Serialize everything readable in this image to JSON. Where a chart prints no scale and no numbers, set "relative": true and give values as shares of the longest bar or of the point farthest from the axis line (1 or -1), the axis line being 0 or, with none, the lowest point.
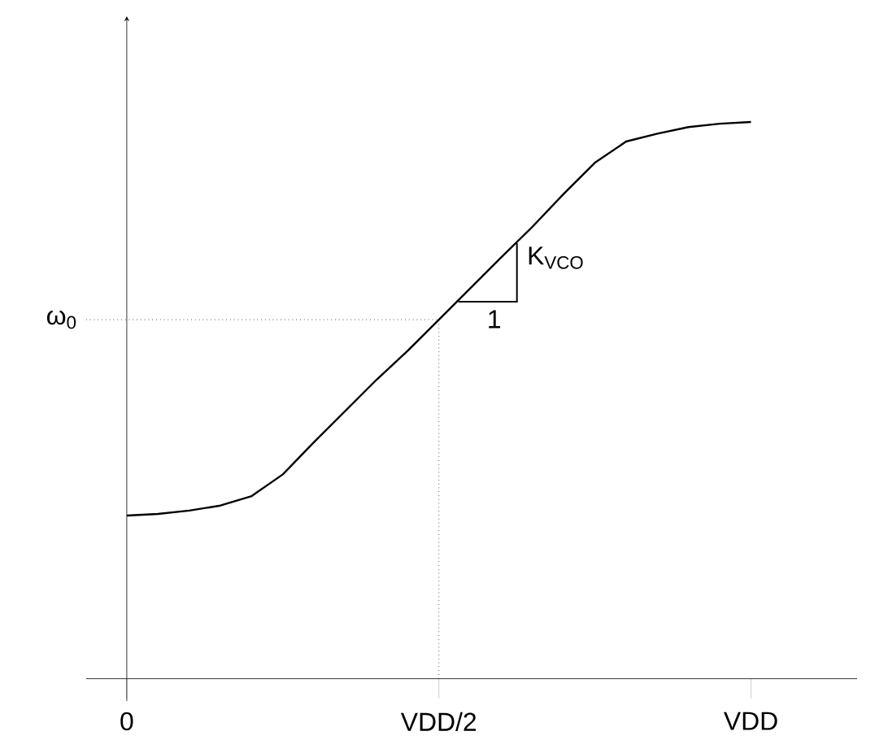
{
  "chart_data": {
    "type": "line",
    "relative": true,
    "color": "#000000",
    "categories": [
      "0",
      null,
      null,
      null,
      null,
      null,
      null,
      null,
      null,
      null,
      "VDD/2",
      null,
      null,
      null,
      null,
      null,
      null,
      null,
      null,
      null,
      "VDD"
    ],
    "values": [
      0.293,
      0.296,
      0.302,
      0.311,
      0.328,
      0.367,
      0.425,
      0.481,
      0.537,
      0.589,
      0.645,
      0.701,
      0.757,
      0.812,
      0.871,
      0.927,
      0.965,
      0.979,
      0.991,
      0.997,
      1.0
    ],
    "ref_lines": [
      {
        "axis": "y",
        "value": 0.645,
        "label": "ω$_{0}$",
        "line_style": "dotted"
      },
      {
        "axis": "x",
        "value": "VDD/2",
        "line_style": "dotted"
      }
    ],
    "annotations": [
      "K$_{VCO}$",
      "1"
    ]
  }
}
